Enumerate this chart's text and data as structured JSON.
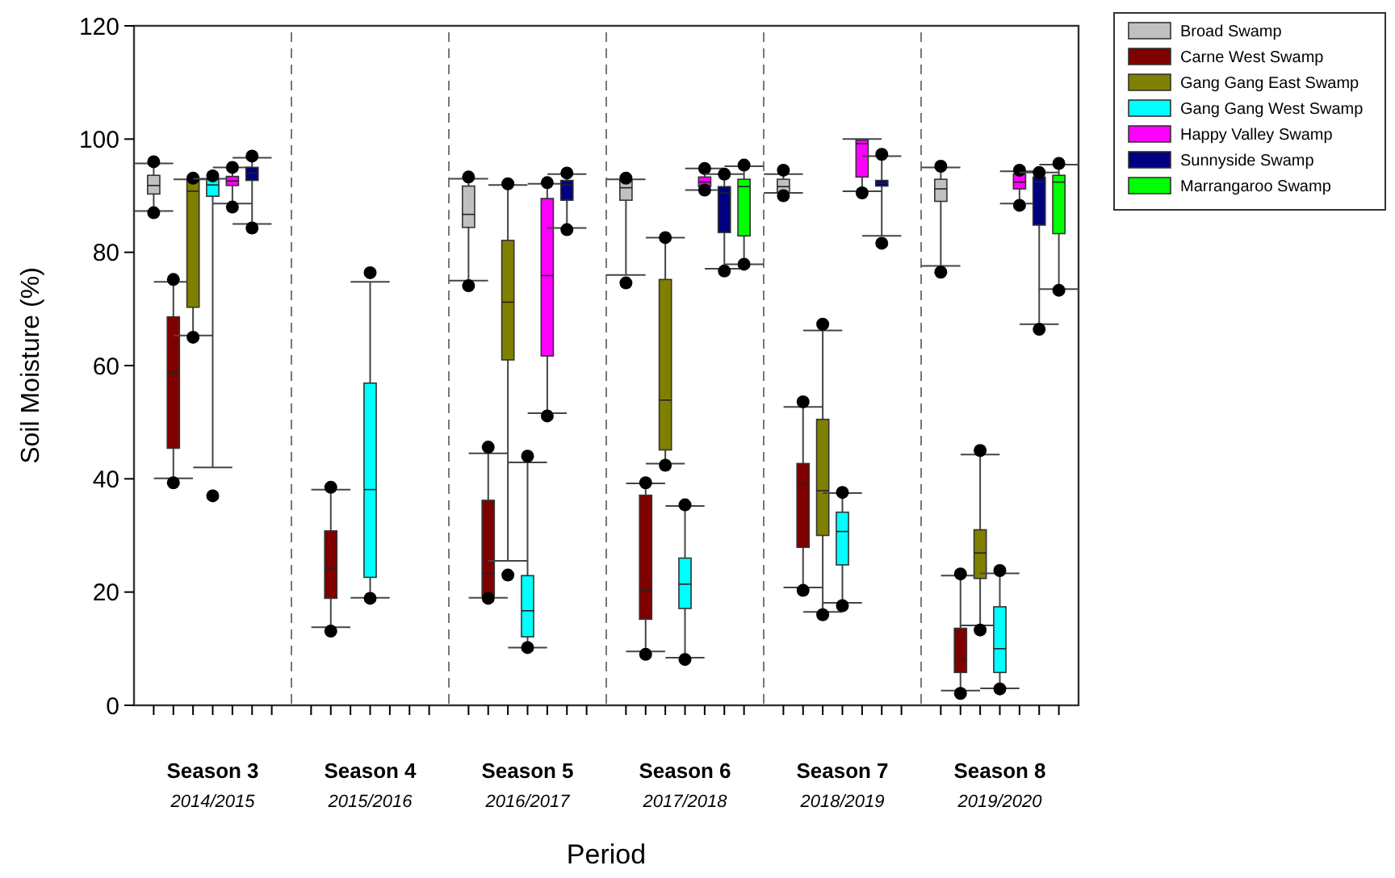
{
  "chart_data": {
    "type": "box",
    "xlabel": "Period",
    "ylabel": "Soil Moisture (%)",
    "categories": [
      "Season 3\n2014/2015",
      "Season 4\n2015/2016",
      "Season 5\n2016/2017",
      "Season 6\n2017/2018",
      "Season 7\n2018/2019",
      "Season 8\n2019/2020"
    ],
    "ylim": [
      0,
      120
    ],
    "yticks": [
      0,
      20,
      40,
      60,
      80,
      100,
      120
    ],
    "grid": "x",
    "legend": "right",
    "series": [
      {
        "name": "Broad Swamp",
        "color": "#c0c0c0",
        "boxes": [
          {
            "low": 87.3,
            "q1": 90.3,
            "median": 91.8,
            "q3": 93.6,
            "high": 95.7,
            "outliers": [
              96,
              87
            ]
          },
          null,
          {
            "low": 75,
            "q1": 84.4,
            "median": 86.7,
            "q3": 91.7,
            "high": 93,
            "outliers": [
              93.3,
              74.1
            ]
          },
          {
            "low": 76,
            "q1": 89.2,
            "median": 91.4,
            "q3": 92.7,
            "high": 92.9,
            "outliers": [
              93.1,
              74.6
            ]
          },
          {
            "low": 90.5,
            "q1": 90.5,
            "median": 91.6,
            "q3": 92.9,
            "high": 93.8,
            "outliers": [
              94.5,
              90
            ]
          },
          {
            "low": 77.6,
            "q1": 89,
            "median": 91.2,
            "q3": 92.9,
            "high": 95,
            "outliers": [
              95.2,
              76.5
            ]
          }
        ]
      },
      {
        "name": "Carne West Swamp",
        "color": "#800000",
        "boxes": [
          {
            "low": 40.1,
            "q1": 45.4,
            "median": 58.8,
            "q3": 68.6,
            "high": 74.8,
            "outliers": [
              75.2,
              39.3
            ]
          },
          {
            "low": 13.8,
            "q1": 18.9,
            "median": 24.1,
            "q3": 30.8,
            "high": 38.1,
            "outliers": [
              38.5,
              13.1
            ]
          },
          {
            "low": 19,
            "q1": 19.3,
            "median": 23.3,
            "q3": 36.2,
            "high": 44.5,
            "outliers": [
              45.6,
              18.9
            ]
          },
          {
            "low": 9.5,
            "q1": 15.2,
            "median": 20.3,
            "q3": 37.1,
            "high": 39.2,
            "outliers": [
              39.3,
              9
            ]
          },
          {
            "low": 20.8,
            "q1": 27.9,
            "median": 39.2,
            "q3": 42.7,
            "high": 52.7,
            "outliers": [
              53.6,
              20.3
            ]
          },
          {
            "low": 2.6,
            "q1": 5.8,
            "median": 8.1,
            "q3": 13.6,
            "high": 22.9,
            "outliers": [
              23.2,
              2.1
            ]
          }
        ]
      },
      {
        "name": "Gang Gang East Swamp",
        "color": "#808000",
        "boxes": [
          {
            "low": 65.3,
            "q1": 70.3,
            "median": 90.8,
            "q3": 92.9,
            "high": 92.9,
            "outliers": [
              93.1,
              65
            ]
          },
          null,
          {
            "low": 25.5,
            "q1": 61,
            "median": 71.2,
            "q3": 82.1,
            "high": 91.9,
            "outliers": [
              92.1,
              23
            ]
          },
          {
            "low": 42.7,
            "q1": 45.1,
            "median": 53.9,
            "q3": 75.2,
            "high": 82.6,
            "outliers": [
              82.6,
              42.4
            ]
          },
          {
            "low": 16.5,
            "q1": 30,
            "median": 37.9,
            "q3": 50.5,
            "high": 66.2,
            "outliers": [
              67.3,
              16
            ]
          },
          {
            "low": 14.1,
            "q1": 22.4,
            "median": 26.9,
            "q3": 31,
            "high": 44.3,
            "outliers": [
              45,
              13.3
            ]
          }
        ]
      },
      {
        "name": "Gang Gang West Swamp",
        "color": "#00ffff",
        "boxes": [
          {
            "low": 42,
            "q1": 89.9,
            "median": 91.9,
            "q3": 92.9,
            "high": 93,
            "outliers": [
              93.5,
              37
            ]
          },
          {
            "low": 19,
            "q1": 22.6,
            "median": 38.1,
            "q3": 56.9,
            "high": 74.8,
            "outliers": [
              76.4,
              18.9
            ]
          },
          {
            "low": 10.2,
            "q1": 12.1,
            "median": 16.7,
            "q3": 22.9,
            "high": 42.9,
            "outliers": [
              44,
              10.2
            ]
          },
          {
            "low": 8.4,
            "q1": 17.1,
            "median": 21.4,
            "q3": 26,
            "high": 35.2,
            "outliers": [
              35.4,
              8.1
            ]
          },
          {
            "low": 18.1,
            "q1": 24.8,
            "median": 30.7,
            "q3": 34.1,
            "high": 37.5,
            "outliers": [
              37.6,
              17.6
            ]
          },
          {
            "low": 3,
            "q1": 5.8,
            "median": 10,
            "q3": 17.4,
            "high": 23.3,
            "outliers": [
              23.8,
              2.9
            ]
          }
        ]
      },
      {
        "name": "Happy Valley Swamp",
        "color": "#ff00ff",
        "boxes": [
          {
            "low": 88.6,
            "q1": 91.8,
            "median": 92.6,
            "q3": 93.4,
            "high": 95,
            "outliers": [
              95,
              88
            ]
          },
          null,
          {
            "low": 51.6,
            "q1": 61.7,
            "median": 75.9,
            "q3": 89.5,
            "high": 92.1,
            "outliers": [
              92.3,
              51.1
            ]
          },
          {
            "low": 91,
            "q1": 91.6,
            "median": 92.4,
            "q3": 93.3,
            "high": 94.8,
            "outliers": [
              94.8,
              91
            ]
          },
          {
            "low": 90.8,
            "q1": 93.3,
            "median": 99.2,
            "q3": 99.8,
            "high": 100,
            "outliers": [
              90.5
            ]
          },
          {
            "low": 88.6,
            "q1": 91.2,
            "median": 92.4,
            "q3": 93.8,
            "high": 94.3,
            "outliers": [
              94.5,
              88.3
            ]
          }
        ]
      },
      {
        "name": "Sunnyside Swamp",
        "color": "#000080",
        "boxes": [
          {
            "low": 85,
            "q1": 92.7,
            "median": 94,
            "q3": 95,
            "high": 96.7,
            "outliers": [
              97,
              84.3
            ]
          },
          null,
          {
            "low": 84.3,
            "q1": 89.2,
            "median": 91.9,
            "q3": 92.7,
            "high": 93.8,
            "outliers": [
              94,
              84
            ]
          },
          {
            "low": 77.1,
            "q1": 83.5,
            "median": 90.5,
            "q3": 91.6,
            "high": 93.8,
            "outliers": [
              93.8,
              76.7
            ]
          },
          {
            "low": 82.9,
            "q1": 91.7,
            "median": 92.2,
            "q3": 92.7,
            "high": 97,
            "outliers": [
              97.3,
              81.6
            ]
          },
          {
            "low": 67.3,
            "q1": 84.8,
            "median": 92.5,
            "q3": 93.3,
            "high": 94.1,
            "outliers": [
              94.1,
              66.4
            ]
          }
        ]
      },
      {
        "name": "Marrangaroo Swamp",
        "color": "#00ff00",
        "boxes": [
          null,
          null,
          null,
          {
            "low": 77.9,
            "q1": 82.9,
            "median": 91.6,
            "q3": 92.9,
            "high": 95.2,
            "outliers": [
              95.4,
              77.9
            ]
          },
          null,
          {
            "low": 73.5,
            "q1": 83.3,
            "median": 92.4,
            "q3": 93.6,
            "high": 95.5,
            "outliers": [
              95.7,
              73.3
            ]
          }
        ]
      }
    ]
  }
}
